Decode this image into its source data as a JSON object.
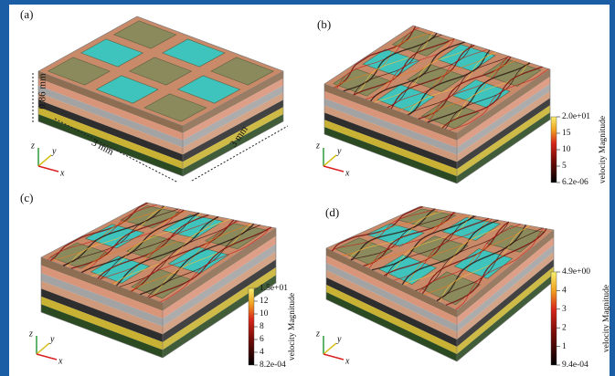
{
  "panels": [
    {
      "label": "(a)",
      "dimensions": [
        "0.86 mm",
        "3 mm",
        "3 mm"
      ],
      "axes": [
        "z",
        "y",
        "x"
      ]
    },
    {
      "label": "(b)",
      "axes": [
        "z",
        "y",
        "x"
      ],
      "colorbar": {
        "title": "velocity Magnitude",
        "ticks": [
          "2.0e+01",
          "15",
          "10",
          "5",
          "6.2e-06"
        ]
      }
    },
    {
      "label": "(c)",
      "axes": [
        "z",
        "y",
        "x"
      ],
      "colorbar": {
        "title": "velocity Magnitude",
        "ticks": [
          "1.5e+01",
          "12",
          "10",
          "8",
          "6",
          "4",
          "8.2e-04"
        ]
      }
    },
    {
      "label": "(d)",
      "axes": [
        "z",
        "y",
        "x"
      ],
      "colorbar": {
        "title": "velocity Magnitude",
        "ticks": [
          "4.9e+00",
          "4",
          "3",
          "2",
          "1",
          "9.4e-04"
        ]
      }
    }
  ]
}
